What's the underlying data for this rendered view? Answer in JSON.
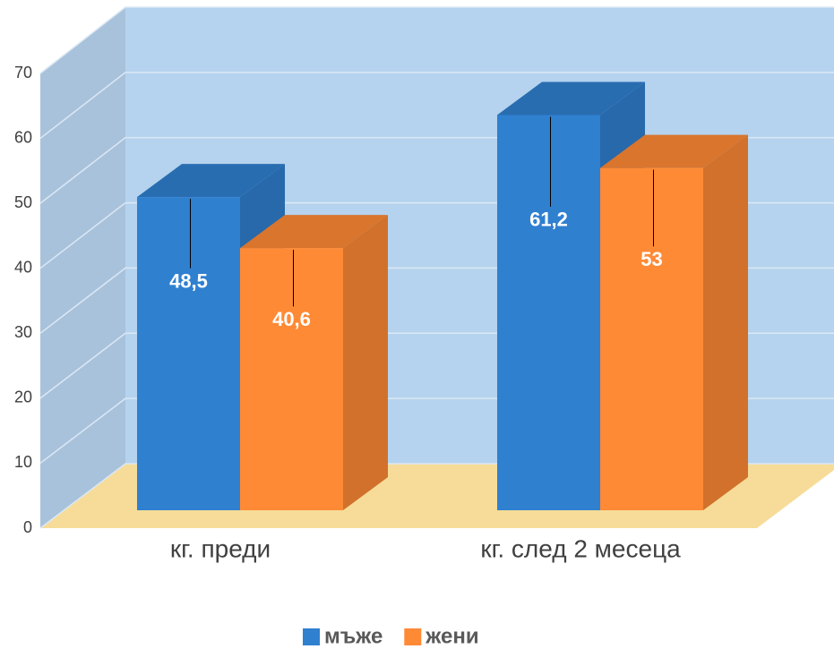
{
  "chart_data": {
    "type": "bar3d",
    "categories": [
      "кг. преди",
      "кг. след 2 месеца"
    ],
    "series": [
      {
        "name": "мъже",
        "color": "#3080d0",
        "values": [
          48.5,
          61.2
        ],
        "value_labels": [
          "48,5",
          "61,2"
        ]
      },
      {
        "name": "жени",
        "color": "#ff8a35",
        "values": [
          40.6,
          53
        ],
        "value_labels": [
          "40,6",
          "53"
        ]
      }
    ],
    "ylim": [
      0,
      70
    ],
    "yticks": [
      0,
      10,
      20,
      30,
      40,
      50,
      60,
      70
    ],
    "grid": true,
    "legend": "bottom"
  }
}
